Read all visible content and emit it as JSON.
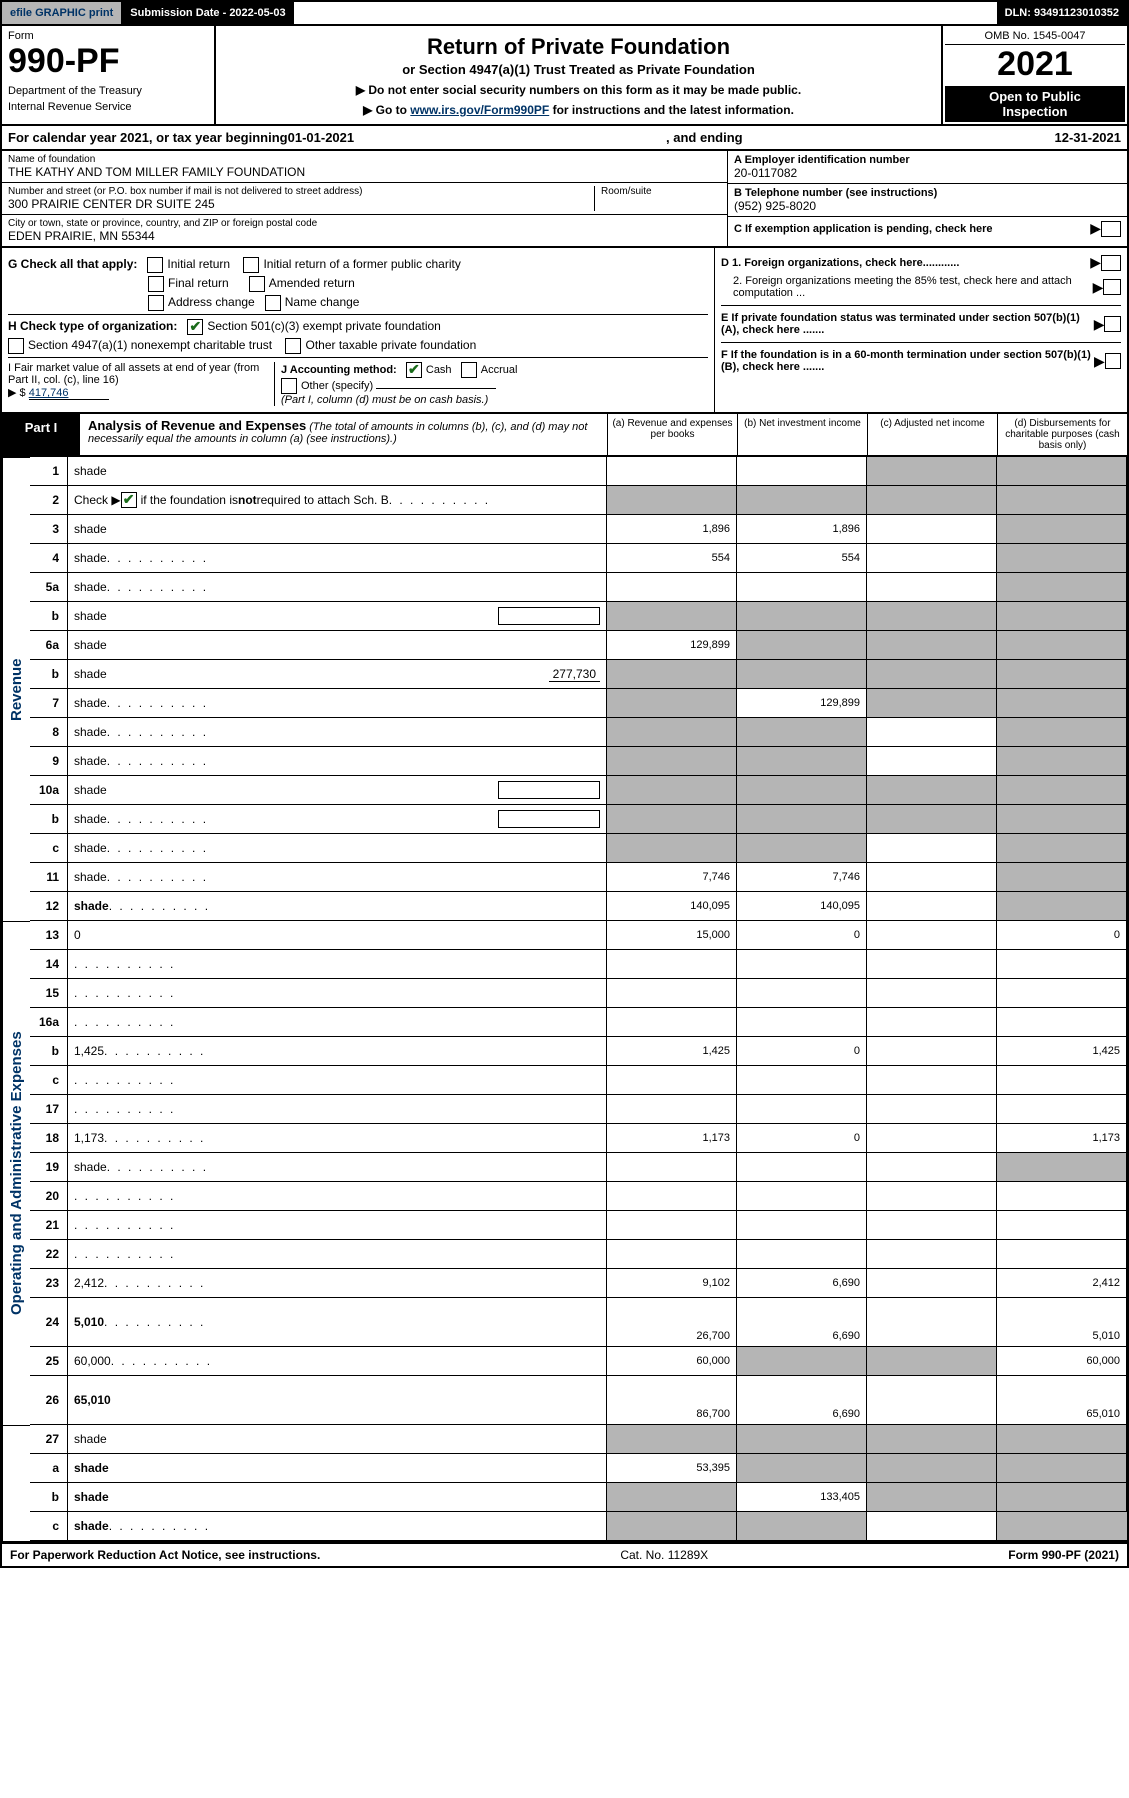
{
  "topbar": {
    "efile_label": "efile GRAPHIC print",
    "submission_label": "Submission Date - 2022-05-03",
    "dln_label": "DLN: 93491123010352"
  },
  "header": {
    "form_word": "Form",
    "form_number": "990-PF",
    "dept": "Department of the Treasury",
    "irs": "Internal Revenue Service",
    "title": "Return of Private Foundation",
    "subtitle": "or Section 4947(a)(1) Trust Treated as Private Foundation",
    "instr1": "▶ Do not enter social security numbers on this form as it may be made public.",
    "instr2_prefix": "▶ Go to ",
    "instr2_link": "www.irs.gov/Form990PF",
    "instr2_suffix": " for instructions and the latest information.",
    "omb": "OMB No. 1545-0047",
    "year": "2021",
    "inspect1": "Open to Public",
    "inspect2": "Inspection"
  },
  "calyear": {
    "prefix": "For calendar year 2021, or tax year beginning ",
    "begin": "01-01-2021",
    "mid": " , and ending ",
    "end": "12-31-2021"
  },
  "info": {
    "name_label": "Name of foundation",
    "name": "THE KATHY AND TOM MILLER FAMILY FOUNDATION",
    "addr_label": "Number and street (or P.O. box number if mail is not delivered to street address)",
    "addr": "300 PRAIRIE CENTER DR SUITE 245",
    "room_label": "Room/suite",
    "city_label": "City or town, state or province, country, and ZIP or foreign postal code",
    "city": "EDEN PRAIRIE, MN  55344",
    "ein_label": "A Employer identification number",
    "ein": "20-0117082",
    "phone_label": "B Telephone number (see instructions)",
    "phone": "(952) 925-8020",
    "c_label": "C If exemption application is pending, check here",
    "d1_label": "D 1. Foreign organizations, check here............",
    "d2_label": "2. Foreign organizations meeting the 85% test, check here and attach computation ...",
    "e_label": "E If private foundation status was terminated under section 507(b)(1)(A), check here .......",
    "f_label": "F If the foundation is in a 60-month termination under section 507(b)(1)(B), check here ......."
  },
  "g": {
    "label": "G Check all that apply:",
    "initial": "Initial return",
    "initial_former": "Initial return of a former public charity",
    "final": "Final return",
    "amended": "Amended return",
    "address": "Address change",
    "name": "Name change"
  },
  "h": {
    "label": "H Check type of organization:",
    "s501": "Section 501(c)(3) exempt private foundation",
    "s4947": "Section 4947(a)(1) nonexempt charitable trust",
    "other_tax": "Other taxable private foundation"
  },
  "i": {
    "label": "I Fair market value of all assets at end of year (from Part II, col. (c), line 16)",
    "prefix": "▶ $",
    "value": "417,746"
  },
  "j": {
    "label": "J Accounting method:",
    "cash": "Cash",
    "accrual": "Accrual",
    "other": "Other (specify)",
    "note": "(Part I, column (d) must be on cash basis.)"
  },
  "part1": {
    "label": "Part I",
    "title": "Analysis of Revenue and Expenses",
    "note": "(The total of amounts in columns (b), (c), and (d) may not necessarily equal the amounts in column (a) (see instructions).)",
    "col_a": "(a) Revenue and expenses per books",
    "col_b": "(b) Net investment income",
    "col_c": "(c) Adjusted net income",
    "col_d": "(d) Disbursements for charitable purposes (cash basis only)"
  },
  "sections": {
    "revenue": "Revenue",
    "expenses": "Operating and Administrative Expenses"
  },
  "rows": [
    {
      "n": "1",
      "d": "shade",
      "a": "",
      "b": "",
      "c": "shade",
      "section": "rev",
      "rows": 1
    },
    {
      "n": "2",
      "d": "shade",
      "a": "shade",
      "b": "shade",
      "c": "shade",
      "section": "rev",
      "dots": true,
      "bold_check": true
    },
    {
      "n": "3",
      "d": "shade",
      "a": "1,896",
      "b": "1,896",
      "c": "",
      "section": "rev"
    },
    {
      "n": "4",
      "d": "shade",
      "a": "554",
      "b": "554",
      "c": "",
      "section": "rev",
      "dots": true
    },
    {
      "n": "5a",
      "d": "shade",
      "a": "",
      "b": "",
      "c": "",
      "section": "rev",
      "dots": true
    },
    {
      "n": "b",
      "d": "shade",
      "a": "shade",
      "b": "shade",
      "c": "shade",
      "section": "rev",
      "inline_blank": true
    },
    {
      "n": "6a",
      "d": "shade",
      "a": "129,899",
      "b": "shade",
      "c": "shade",
      "section": "rev"
    },
    {
      "n": "b",
      "d": "shade",
      "a": "shade",
      "b": "shade",
      "c": "shade",
      "section": "rev",
      "inline_val": "277,730"
    },
    {
      "n": "7",
      "d": "shade",
      "a": "shade",
      "b": "129,899",
      "c": "shade",
      "section": "rev",
      "dots": true
    },
    {
      "n": "8",
      "d": "shade",
      "a": "shade",
      "b": "shade",
      "c": "",
      "section": "rev",
      "dots": true
    },
    {
      "n": "9",
      "d": "shade",
      "a": "shade",
      "b": "shade",
      "c": "",
      "section": "rev",
      "dots": true
    },
    {
      "n": "10a",
      "d": "shade",
      "a": "shade",
      "b": "shade",
      "c": "shade",
      "section": "rev",
      "inline_blank": true
    },
    {
      "n": "b",
      "d": "shade",
      "a": "shade",
      "b": "shade",
      "c": "shade",
      "section": "rev",
      "inline_blank": true,
      "dots": true
    },
    {
      "n": "c",
      "d": "shade",
      "a": "shade",
      "b": "shade",
      "c": "",
      "section": "rev",
      "dots": true
    },
    {
      "n": "11",
      "d": "shade",
      "a": "7,746",
      "b": "7,746",
      "c": "",
      "section": "rev",
      "dots": true
    },
    {
      "n": "12",
      "d": "shade",
      "a": "140,095",
      "b": "140,095",
      "c": "",
      "section": "rev",
      "bold": true,
      "dots": true
    },
    {
      "n": "13",
      "d": "0",
      "a": "15,000",
      "b": "0",
      "c": "",
      "section": "exp"
    },
    {
      "n": "14",
      "d": "",
      "a": "",
      "b": "",
      "c": "",
      "section": "exp",
      "dots": true
    },
    {
      "n": "15",
      "d": "",
      "a": "",
      "b": "",
      "c": "",
      "section": "exp",
      "dots": true
    },
    {
      "n": "16a",
      "d": "",
      "a": "",
      "b": "",
      "c": "",
      "section": "exp",
      "dots": true
    },
    {
      "n": "b",
      "d": "1,425",
      "a": "1,425",
      "b": "0",
      "c": "",
      "section": "exp",
      "dots": true
    },
    {
      "n": "c",
      "d": "",
      "a": "",
      "b": "",
      "c": "",
      "section": "exp",
      "dots": true
    },
    {
      "n": "17",
      "d": "",
      "a": "",
      "b": "",
      "c": "",
      "section": "exp",
      "dots": true
    },
    {
      "n": "18",
      "d": "1,173",
      "a": "1,173",
      "b": "0",
      "c": "",
      "section": "exp",
      "dots": true
    },
    {
      "n": "19",
      "d": "shade",
      "a": "",
      "b": "",
      "c": "",
      "section": "exp",
      "dots": true
    },
    {
      "n": "20",
      "d": "",
      "a": "",
      "b": "",
      "c": "",
      "section": "exp",
      "dots": true
    },
    {
      "n": "21",
      "d": "",
      "a": "",
      "b": "",
      "c": "",
      "section": "exp",
      "dots": true
    },
    {
      "n": "22",
      "d": "",
      "a": "",
      "b": "",
      "c": "",
      "section": "exp",
      "dots": true
    },
    {
      "n": "23",
      "d": "2,412",
      "a": "9,102",
      "b": "6,690",
      "c": "",
      "section": "exp",
      "dots": true
    },
    {
      "n": "24",
      "d": "5,010",
      "a": "26,700",
      "b": "6,690",
      "c": "",
      "section": "exp",
      "bold": true,
      "dots": true,
      "tall": true
    },
    {
      "n": "25",
      "d": "60,000",
      "a": "60,000",
      "b": "shade",
      "c": "shade",
      "section": "exp",
      "dots": true
    },
    {
      "n": "26",
      "d": "65,010",
      "a": "86,700",
      "b": "6,690",
      "c": "",
      "section": "exp",
      "bold": true,
      "tall": true
    },
    {
      "n": "27",
      "d": "shade",
      "a": "shade",
      "b": "shade",
      "c": "shade",
      "section": "none"
    },
    {
      "n": "a",
      "d": "shade",
      "a": "53,395",
      "b": "shade",
      "c": "shade",
      "section": "none",
      "bold": true
    },
    {
      "n": "b",
      "d": "shade",
      "a": "shade",
      "b": "133,405",
      "c": "shade",
      "section": "none",
      "bold": true
    },
    {
      "n": "c",
      "d": "shade",
      "a": "shade",
      "b": "shade",
      "c": "",
      "section": "none",
      "bold": true,
      "dots": true
    }
  ],
  "footer": {
    "left": "For Paperwork Reduction Act Notice, see instructions.",
    "mid": "Cat. No. 11289X",
    "right": "Form 990-PF (2021)"
  }
}
